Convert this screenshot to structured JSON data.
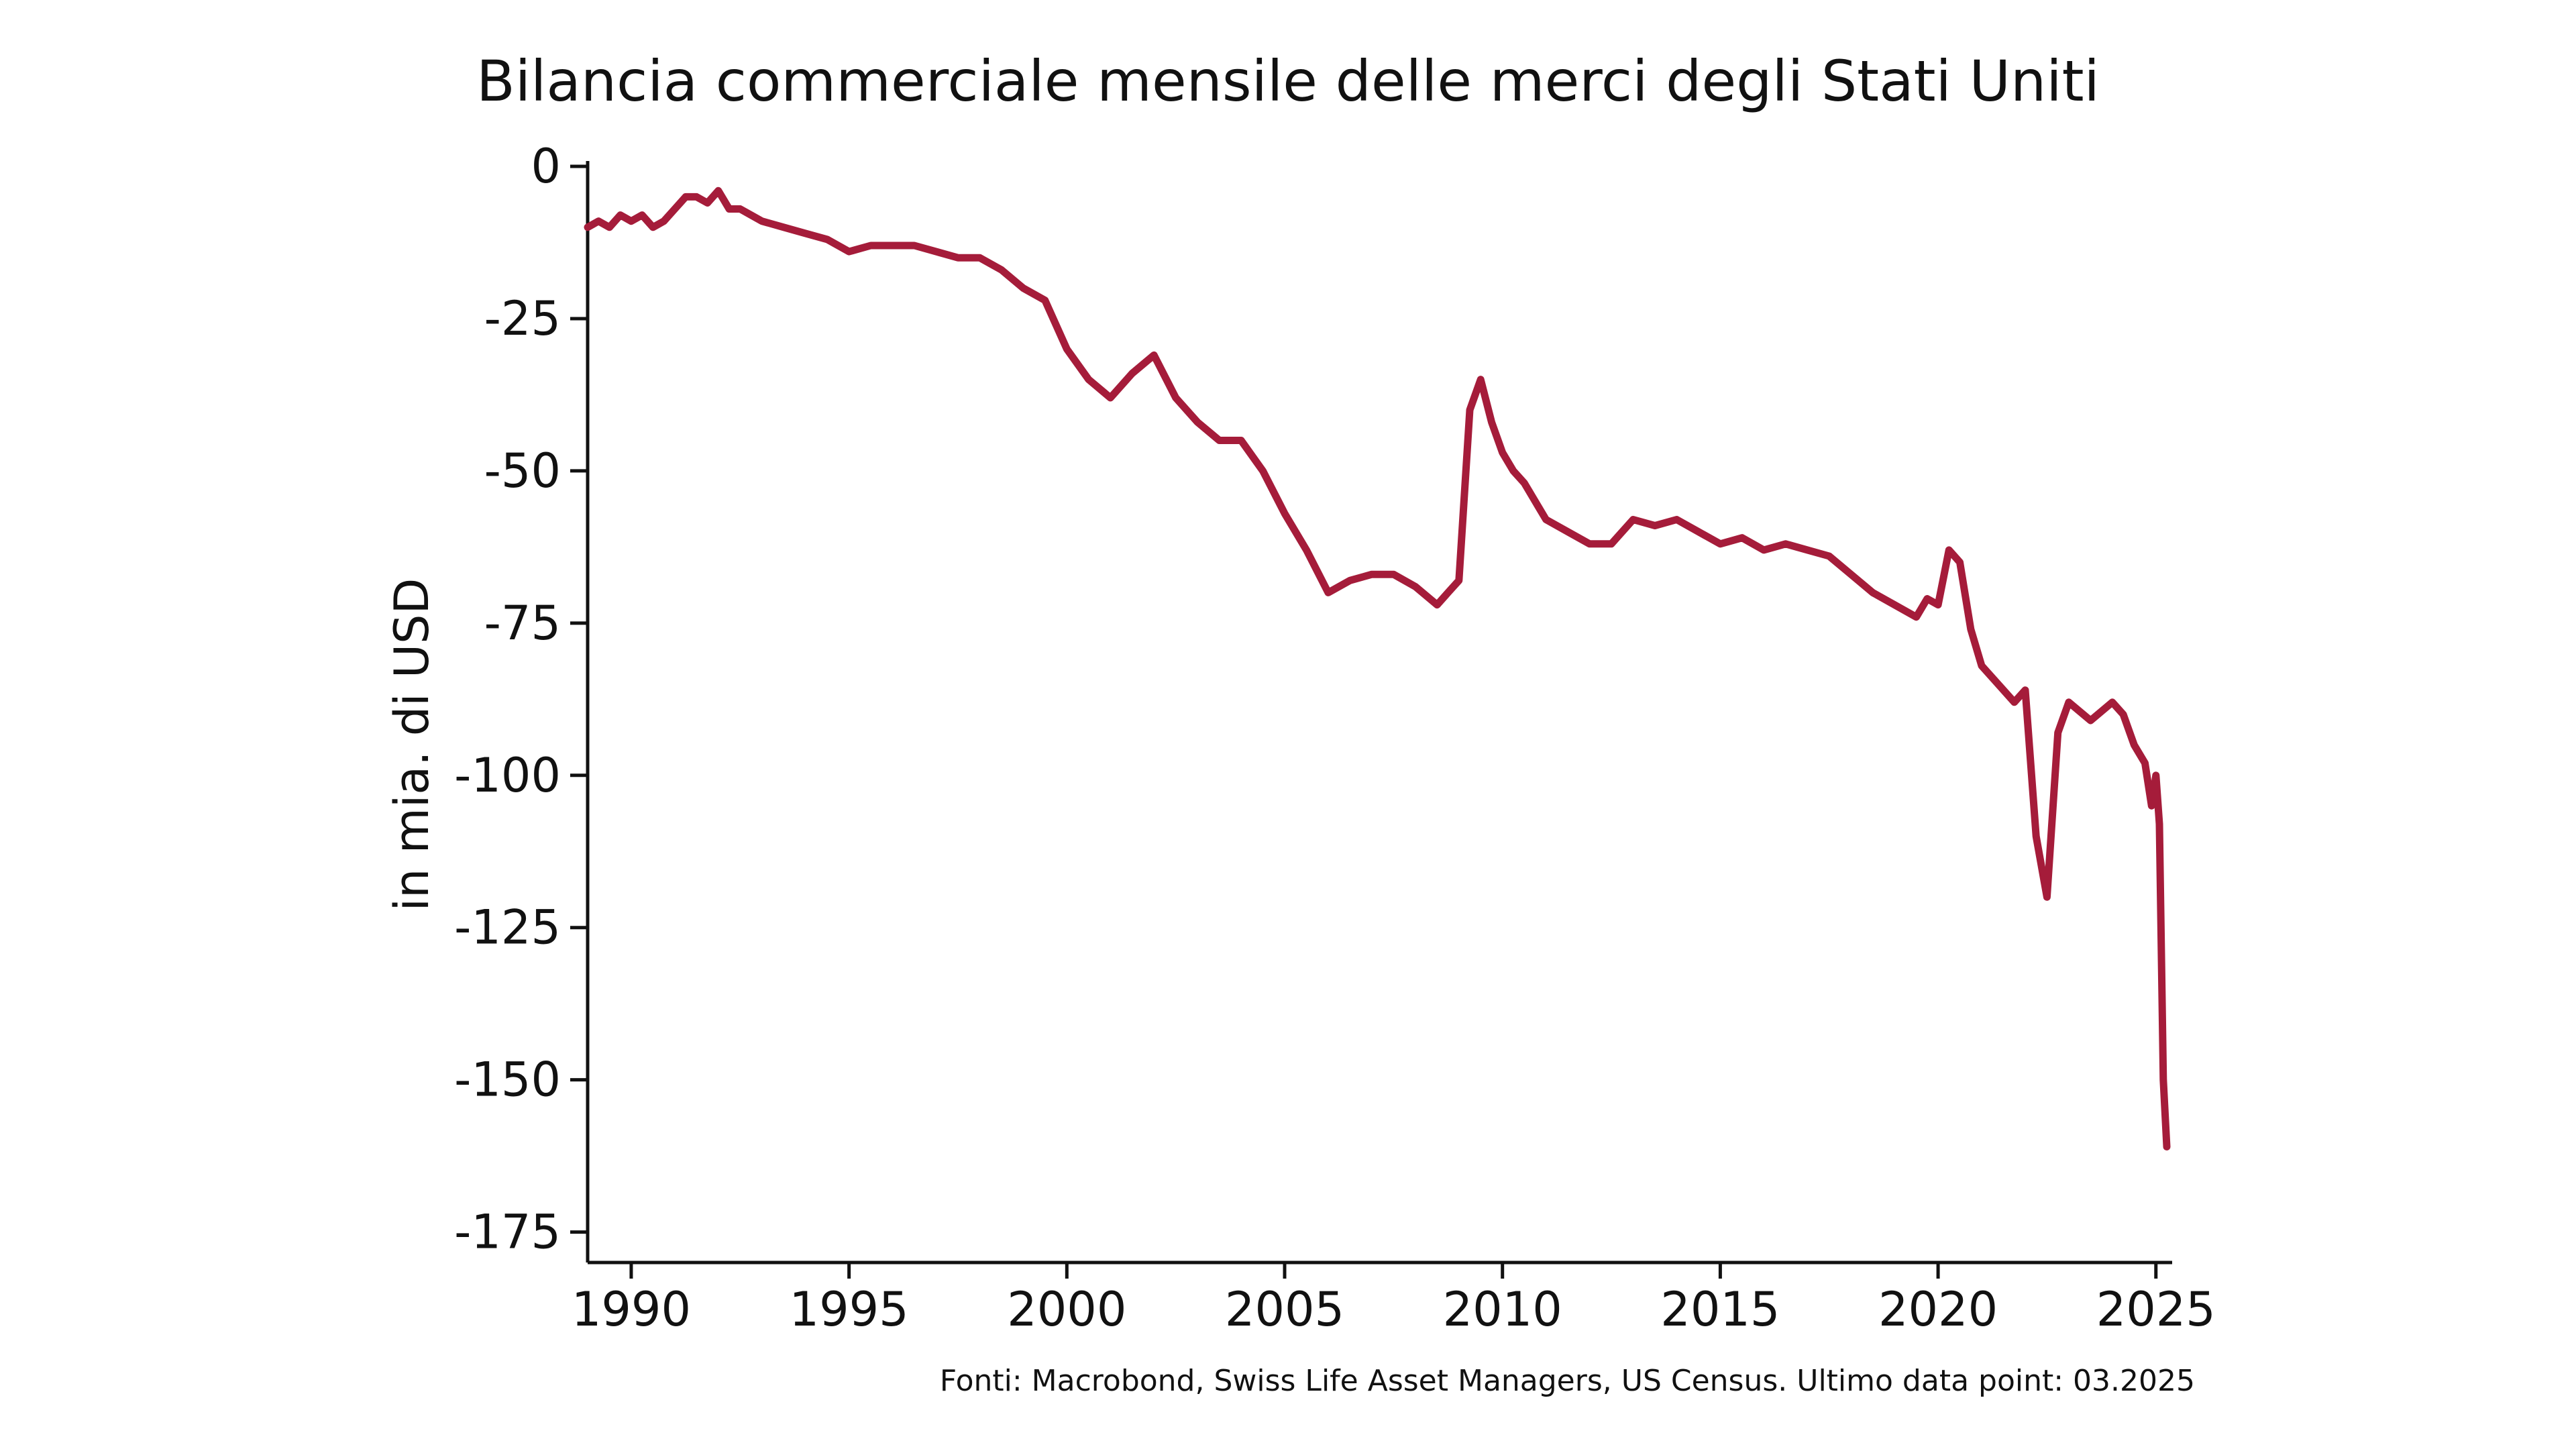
{
  "chart_data": {
    "type": "line",
    "title": "Bilancia commerciale mensile delle merci degli Stati Uniti",
    "xlabel": "",
    "ylabel": "in mia. di USD",
    "xlim": [
      1989.0,
      2025.25
    ],
    "ylim": [
      -180,
      0
    ],
    "x_ticks": [
      1990,
      1995,
      2000,
      2005,
      2010,
      2015,
      2020,
      2025
    ],
    "x_tick_labels": [
      "1990",
      "1995",
      "2000",
      "2005",
      "2010",
      "2015",
      "2020",
      "2025"
    ],
    "y_ticks": [
      0,
      -25,
      -50,
      -75,
      -100,
      -125,
      -150,
      -175
    ],
    "y_tick_labels": [
      "0",
      "-25",
      "-50",
      "-75",
      "-100",
      "-125",
      "-150",
      "-175"
    ],
    "grid": false,
    "legend": "none",
    "source": "Fonti: Macrobond, Swiss Life Asset Managers, US Census. Ultimo data point: 03.2025",
    "colors": {
      "line": "#A51C3A",
      "axis": "#111111",
      "background": "#FFFFFF"
    },
    "series": [
      {
        "color": "#A51C3A",
        "x": [
          1989.0,
          1989.25,
          1989.5,
          1989.75,
          1990.0,
          1990.25,
          1990.5,
          1990.75,
          1991.0,
          1991.25,
          1991.5,
          1991.75,
          1992.0,
          1992.25,
          1992.5,
          1992.75,
          1993.0,
          1993.5,
          1994.0,
          1994.5,
          1995.0,
          1995.5,
          1996.0,
          1996.5,
          1997.0,
          1997.5,
          1998.0,
          1998.5,
          1999.0,
          1999.5,
          2000.0,
          2000.5,
          2001.0,
          2001.5,
          2002.0,
          2002.5,
          2003.0,
          2003.5,
          2004.0,
          2004.5,
          2005.0,
          2005.5,
          2006.0,
          2006.5,
          2007.0,
          2007.5,
          2008.0,
          2008.5,
          2008.75,
          2009.0,
          2009.25,
          2009.5,
          2009.75,
          2010.0,
          2010.25,
          2010.5,
          2011.0,
          2011.5,
          2012.0,
          2012.5,
          2013.0,
          2013.5,
          2014.0,
          2014.5,
          2015.0,
          2015.5,
          2016.0,
          2016.5,
          2017.0,
          2017.5,
          2018.0,
          2018.5,
          2019.0,
          2019.5,
          2019.75,
          2020.0,
          2020.25,
          2020.5,
          2020.75,
          2021.0,
          2021.5,
          2021.75,
          2022.0,
          2022.25,
          2022.5,
          2022.75,
          2023.0,
          2023.5,
          2024.0,
          2024.25,
          2024.5,
          2024.75,
          2024.9,
          2025.0,
          2025.08,
          2025.17,
          2025.25
        ],
        "values": [
          -10,
          -9,
          -10,
          -8,
          -9,
          -8,
          -10,
          -9,
          -7,
          -5,
          -5,
          -6,
          -4,
          -7,
          -7,
          -8,
          -9,
          -10,
          -11,
          -12,
          -14,
          -13,
          -13,
          -13,
          -14,
          -15,
          -15,
          -17,
          -20,
          -22,
          -30,
          -35,
          -38,
          -34,
          -31,
          -38,
          -42,
          -45,
          -45,
          -50,
          -57,
          -63,
          -70,
          -68,
          -67,
          -67,
          -69,
          -72,
          -70,
          -68,
          -40,
          -35,
          -42,
          -47,
          -50,
          -52,
          -58,
          -60,
          -62,
          -62,
          -58,
          -59,
          -58,
          -60,
          -62,
          -61,
          -63,
          -62,
          -63,
          -64,
          -67,
          -70,
          -72,
          -74,
          -71,
          -72,
          -63,
          -65,
          -76,
          -82,
          -86,
          -88,
          -86,
          -110,
          -120,
          -93,
          -88,
          -91,
          -88,
          -90,
          -95,
          -98,
          -105,
          -100,
          -108,
          -150,
          -161
        ]
      }
    ]
  }
}
